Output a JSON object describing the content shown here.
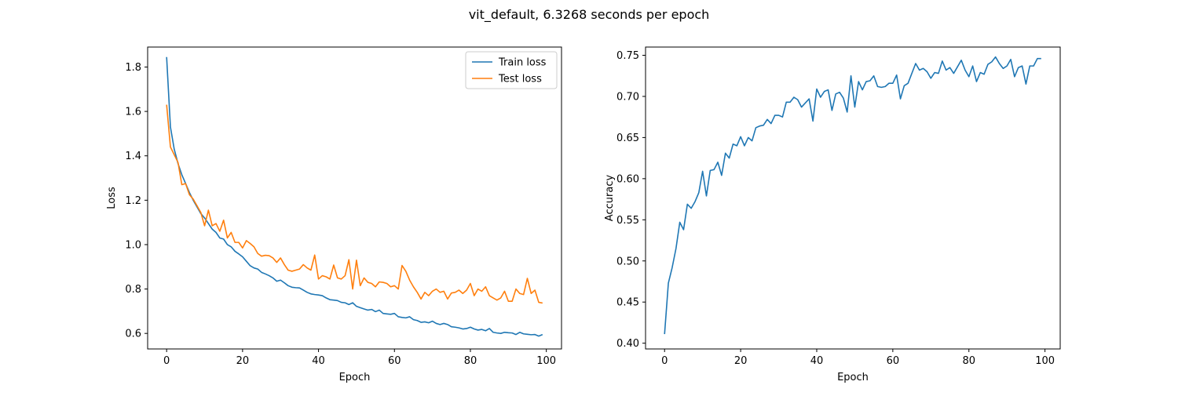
{
  "figure": {
    "suptitle": "vit_default, 6.3268 seconds per epoch"
  },
  "colors": {
    "train": "#1f77b4",
    "test": "#ff7f0e",
    "axes": "#000000",
    "legend_border": "#cccccc"
  },
  "chart_data": [
    {
      "type": "line",
      "title": "",
      "xlabel": "Epoch",
      "ylabel": "Loss",
      "xlim": [
        -5,
        104
      ],
      "ylim": [
        0.53,
        1.89
      ],
      "xticks": [
        0,
        20,
        40,
        60,
        80,
        100
      ],
      "yticks": [
        0.6,
        0.8,
        1.0,
        1.2,
        1.4,
        1.6,
        1.8
      ],
      "xtick_labels": [
        "0",
        "20",
        "40",
        "60",
        "80",
        "100"
      ],
      "ytick_labels": [
        "0.6",
        "0.8",
        "1.0",
        "1.2",
        "1.4",
        "1.6",
        "1.8"
      ],
      "grid": false,
      "legend": "upper right",
      "series": [
        {
          "name": "Train loss",
          "color": "#1f77b4",
          "values": [
            1.845,
            1.53,
            1.43,
            1.365,
            1.315,
            1.275,
            1.235,
            1.2,
            1.17,
            1.14,
            1.12,
            1.095,
            1.07,
            1.055,
            1.03,
            1.025,
            1.0,
            0.99,
            0.97,
            0.958,
            0.945,
            0.925,
            0.905,
            0.895,
            0.89,
            0.875,
            0.868,
            0.86,
            0.85,
            0.835,
            0.84,
            0.828,
            0.815,
            0.808,
            0.806,
            0.805,
            0.795,
            0.785,
            0.778,
            0.775,
            0.773,
            0.77,
            0.76,
            0.752,
            0.75,
            0.748,
            0.74,
            0.738,
            0.73,
            0.738,
            0.722,
            0.716,
            0.71,
            0.705,
            0.708,
            0.698,
            0.705,
            0.69,
            0.688,
            0.686,
            0.69,
            0.675,
            0.672,
            0.67,
            0.675,
            0.662,
            0.658,
            0.65,
            0.652,
            0.648,
            0.655,
            0.645,
            0.64,
            0.645,
            0.64,
            0.63,
            0.628,
            0.625,
            0.62,
            0.622,
            0.628,
            0.62,
            0.615,
            0.618,
            0.612,
            0.622,
            0.605,
            0.602,
            0.6,
            0.605,
            0.603,
            0.602,
            0.595,
            0.605,
            0.598,
            0.596,
            0.594,
            0.595,
            0.588,
            0.595
          ]
        },
        {
          "name": "Test loss",
          "color": "#ff7f0e",
          "values": [
            1.63,
            1.44,
            1.405,
            1.37,
            1.27,
            1.275,
            1.225,
            1.205,
            1.175,
            1.145,
            1.085,
            1.155,
            1.085,
            1.095,
            1.06,
            1.11,
            1.03,
            1.055,
            1.01,
            1.01,
            0.985,
            1.018,
            1.005,
            0.99,
            0.96,
            0.948,
            0.952,
            0.95,
            0.94,
            0.92,
            0.94,
            0.91,
            0.885,
            0.88,
            0.885,
            0.89,
            0.91,
            0.895,
            0.885,
            0.953,
            0.845,
            0.86,
            0.855,
            0.845,
            0.908,
            0.85,
            0.845,
            0.86,
            0.932,
            0.8,
            0.93,
            0.815,
            0.85,
            0.83,
            0.825,
            0.81,
            0.832,
            0.83,
            0.825,
            0.81,
            0.815,
            0.8,
            0.906,
            0.88,
            0.84,
            0.81,
            0.785,
            0.755,
            0.785,
            0.77,
            0.79,
            0.8,
            0.785,
            0.79,
            0.755,
            0.782,
            0.785,
            0.795,
            0.78,
            0.795,
            0.825,
            0.77,
            0.8,
            0.79,
            0.81,
            0.77,
            0.76,
            0.75,
            0.76,
            0.79,
            0.745,
            0.745,
            0.8,
            0.78,
            0.775,
            0.848,
            0.78,
            0.795,
            0.74,
            0.737
          ]
        }
      ]
    },
    {
      "type": "line",
      "title": "",
      "xlabel": "Epoch",
      "ylabel": "Accuracy",
      "xlim": [
        -5,
        104
      ],
      "ylim": [
        0.393,
        0.76
      ],
      "xticks": [
        0,
        20,
        40,
        60,
        80,
        100
      ],
      "yticks": [
        0.4,
        0.45,
        0.5,
        0.55,
        0.6,
        0.65,
        0.7,
        0.75
      ],
      "xtick_labels": [
        "0",
        "20",
        "40",
        "60",
        "80",
        "100"
      ],
      "ytick_labels": [
        "0.40",
        "0.45",
        "0.50",
        "0.55",
        "0.60",
        "0.65",
        "0.70",
        "0.75"
      ],
      "grid": false,
      "series": [
        {
          "color": "#1f77b4",
          "values": [
            0.411,
            0.473,
            0.492,
            0.515,
            0.547,
            0.538,
            0.569,
            0.564,
            0.572,
            0.583,
            0.609,
            0.579,
            0.61,
            0.611,
            0.62,
            0.604,
            0.631,
            0.625,
            0.642,
            0.64,
            0.651,
            0.64,
            0.65,
            0.646,
            0.662,
            0.664,
            0.665,
            0.672,
            0.667,
            0.677,
            0.677,
            0.675,
            0.693,
            0.693,
            0.699,
            0.696,
            0.687,
            0.692,
            0.697,
            0.67,
            0.709,
            0.699,
            0.706,
            0.708,
            0.683,
            0.703,
            0.705,
            0.698,
            0.681,
            0.725,
            0.687,
            0.718,
            0.708,
            0.718,
            0.719,
            0.725,
            0.712,
            0.711,
            0.712,
            0.716,
            0.716,
            0.726,
            0.697,
            0.713,
            0.716,
            0.728,
            0.74,
            0.732,
            0.734,
            0.73,
            0.722,
            0.729,
            0.728,
            0.743,
            0.732,
            0.735,
            0.728,
            0.736,
            0.744,
            0.732,
            0.724,
            0.737,
            0.718,
            0.729,
            0.727,
            0.739,
            0.742,
            0.748,
            0.74,
            0.734,
            0.737,
            0.745,
            0.724,
            0.735,
            0.737,
            0.715,
            0.737,
            0.737,
            0.746,
            0.746
          ]
        }
      ]
    }
  ]
}
